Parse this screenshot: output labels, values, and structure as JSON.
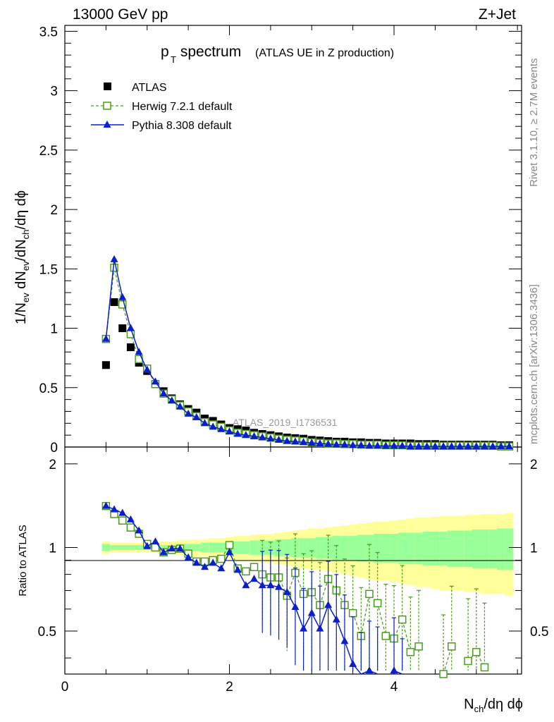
{
  "header": {
    "left": "13000 GeV pp",
    "right": "Z+Jet"
  },
  "side": {
    "rivet": "Rivet 3.1.10, ≥ 2.7M events",
    "mcplots": "mcplots.cern.ch [arXiv:1306.3436]"
  },
  "title": {
    "main": "p",
    "sub": "T",
    "rest": " spectrum",
    "note": "(ATLAS UE in Z production)"
  },
  "watermark": "ATLAS_2019_I1736531",
  "axes": {
    "main_ylabel": "1/N_ev dN_ev/dN_ch/dη dϕ",
    "ratio_ylabel": "Ratio to ATLAS",
    "xlabel": "N_ch/dη dϕ"
  },
  "legend": [
    {
      "label": "ATLAS",
      "color": "#000000",
      "marker": "square-filled"
    },
    {
      "label": "Herwig 7.2.1 default",
      "color": "#4a9c1a",
      "marker": "square-open"
    },
    {
      "label": "Pythia 8.308 default",
      "color": "#0a1fcc",
      "marker": "triangle"
    }
  ],
  "chart_data": {
    "type": "line",
    "title": "pT spectrum (ATLAS UE in Z production)",
    "xlabel": "N_ch/dη dϕ",
    "ylabel": "1/N_ev dN_ev/dN_ch/dη dϕ",
    "xlim": [
      0,
      5.55
    ],
    "ylim": [
      0,
      3.55
    ],
    "ratio_ylim": [
      0.35,
      2.3
    ],
    "xticks": [
      0,
      2,
      4
    ],
    "yticks": [
      0,
      0.5,
      1,
      1.5,
      2,
      2.5,
      3,
      3.5
    ],
    "ratio_yticks": [
      0.5,
      1,
      2
    ],
    "x": [
      0.5,
      0.6,
      0.7,
      0.8,
      0.9,
      1.0,
      1.1,
      1.2,
      1.3,
      1.4,
      1.5,
      1.6,
      1.7,
      1.8,
      1.9,
      2.0,
      2.1,
      2.2,
      2.3,
      2.4,
      2.5,
      2.6,
      2.7,
      2.8,
      2.9,
      3.0,
      3.1,
      3.2,
      3.3,
      3.4,
      3.5,
      3.6,
      3.7,
      3.8,
      3.9,
      4.0,
      4.1,
      4.2,
      4.3,
      4.4,
      4.5,
      4.6,
      4.7,
      4.8,
      4.9,
      5.0,
      5.1,
      5.2,
      5.3,
      5.4
    ],
    "series": [
      {
        "name": "ATLAS",
        "values": [
          0.69,
          1.22,
          1.0,
          0.84,
          0.71,
          0.64,
          0.53,
          0.47,
          0.41,
          0.36,
          0.32,
          0.29,
          0.24,
          0.22,
          0.19,
          0.16,
          0.15,
          0.14,
          0.12,
          0.11,
          0.1,
          0.09,
          0.08,
          0.075,
          0.07,
          0.06,
          0.055,
          0.05,
          0.045,
          0.045,
          0.04,
          0.04,
          0.035,
          0.035,
          0.03,
          0.03,
          0.03,
          0.03,
          0.025,
          0.025,
          0.025,
          0.02,
          0.02,
          0.02,
          0.02,
          0.02,
          0.02,
          0.02,
          0.015,
          0.015
        ]
      },
      {
        "name": "Herwig 7.2.1 default",
        "values": [
          0.91,
          1.51,
          1.2,
          0.95,
          0.74,
          0.66,
          0.53,
          0.45,
          0.4,
          0.35,
          0.3,
          0.26,
          0.21,
          0.19,
          0.17,
          0.14,
          0.12,
          0.11,
          0.1,
          0.09,
          0.08,
          0.07,
          0.06,
          0.055,
          0.05,
          0.04,
          0.035,
          0.03,
          0.03,
          0.025,
          0.025,
          0.02,
          0.02,
          0.02,
          0.015,
          0.015,
          0.015,
          0.01,
          0.01,
          0.01,
          0.01,
          0.01,
          0.01,
          0.01,
          0.01,
          0.01,
          0.01,
          0.01,
          0.005,
          0.005
        ]
      },
      {
        "name": "Pythia 8.308 default",
        "values": [
          0.91,
          1.58,
          1.26,
          1.0,
          0.8,
          0.65,
          0.55,
          0.45,
          0.39,
          0.34,
          0.28,
          0.25,
          0.2,
          0.17,
          0.15,
          0.13,
          0.11,
          0.1,
          0.09,
          0.08,
          0.07,
          0.06,
          0.05,
          0.045,
          0.04,
          0.035,
          0.03,
          0.025,
          0.02,
          0.02,
          0.015,
          0.015,
          0.01,
          0.01,
          0.01,
          0.01,
          0.01,
          0.005,
          0.005,
          0.005,
          0.005,
          0.005,
          0.005,
          0.005,
          0.005,
          0.005,
          0.005,
          0.005,
          0.005,
          0.005
        ]
      }
    ],
    "ratio": {
      "herwig": [
        1.41,
        1.32,
        1.25,
        1.18,
        1.12,
        1.03,
        1.0,
        0.96,
        0.98,
        0.99,
        0.95,
        0.89,
        0.89,
        0.9,
        0.91,
        1.02,
        0.84,
        0.82,
        0.85,
        0.8,
        0.78,
        0.78,
        0.67,
        0.81,
        0.68,
        0.69,
        0.62,
        0.77,
        0.7,
        0.62,
        0.58,
        0.48,
        0.68,
        0.63,
        0.48,
        0.47,
        0.55,
        0.42,
        0.44,
        null,
        null,
        0.35,
        0.44,
        null,
        0.39,
        0.42,
        0.37,
        null,
        null,
        null
      ],
      "pythia": [
        1.41,
        1.37,
        1.33,
        1.26,
        1.15,
        1.01,
        1.05,
        0.96,
        0.99,
        0.99,
        0.92,
        0.88,
        0.85,
        0.88,
        0.84,
        0.96,
        0.83,
        0.73,
        0.77,
        0.73,
        0.73,
        0.72,
        0.69,
        0.61,
        0.51,
        0.58,
        0.51,
        0.62,
        0.55,
        0.46,
        0.38,
        0.33,
        0.36,
        0.34,
        null,
        0.36,
        0.3,
        null,
        null,
        null,
        null,
        null,
        null,
        null,
        null,
        null,
        null,
        null,
        null,
        null
      ],
      "band_inner": [
        0.03,
        0.02,
        0.02,
        0.02,
        0.02,
        0.02,
        0.02,
        0.02,
        0.02,
        0.03,
        0.03,
        0.03,
        0.04,
        0.04,
        0.04,
        0.05,
        0.05,
        0.05,
        0.06,
        0.06,
        0.06,
        0.07,
        0.07,
        0.08,
        0.08,
        0.08,
        0.09,
        0.09,
        0.1,
        0.1,
        0.1,
        0.11,
        0.11,
        0.12,
        0.12,
        0.12,
        0.13,
        0.13,
        0.13,
        0.14,
        0.14,
        0.14,
        0.15,
        0.15,
        0.15,
        0.16,
        0.16,
        0.16,
        0.17,
        0.17
      ],
      "band_outer": [
        0.05,
        0.04,
        0.04,
        0.04,
        0.04,
        0.04,
        0.04,
        0.05,
        0.05,
        0.06,
        0.06,
        0.07,
        0.07,
        0.08,
        0.08,
        0.09,
        0.1,
        0.1,
        0.11,
        0.12,
        0.12,
        0.13,
        0.14,
        0.15,
        0.16,
        0.17,
        0.17,
        0.18,
        0.19,
        0.2,
        0.21,
        0.22,
        0.23,
        0.24,
        0.24,
        0.25,
        0.26,
        0.27,
        0.28,
        0.28,
        0.29,
        0.3,
        0.3,
        0.3,
        0.31,
        0.31,
        0.32,
        0.32,
        0.32,
        0.33
      ]
    }
  }
}
